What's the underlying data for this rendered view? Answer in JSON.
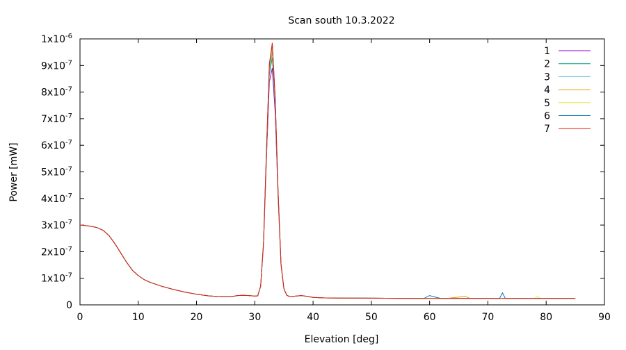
{
  "chart_data": {
    "type": "line",
    "title": "Scan south 10.3.2022",
    "xlabel": "Elevation [deg]",
    "ylabel": "Power [mW]",
    "xlim": [
      0,
      90
    ],
    "ylim": [
      0,
      1e-06
    ],
    "x_ticks": [
      {
        "value": 0,
        "label": "0"
      },
      {
        "value": 10,
        "label": "10"
      },
      {
        "value": 20,
        "label": "20"
      },
      {
        "value": 30,
        "label": "30"
      },
      {
        "value": 40,
        "label": "40"
      },
      {
        "value": 50,
        "label": "50"
      },
      {
        "value": 60,
        "label": "60"
      },
      {
        "value": 70,
        "label": "70"
      },
      {
        "value": 80,
        "label": "80"
      },
      {
        "value": 90,
        "label": "90"
      }
    ],
    "y_ticks": [
      {
        "value": 0,
        "label": "0",
        "mantissa": "0",
        "exp": ""
      },
      {
        "value": 1e-07,
        "label": "1x10-7",
        "mantissa": "1x10",
        "exp": "-7"
      },
      {
        "value": 2e-07,
        "label": "2x10-7",
        "mantissa": "2x10",
        "exp": "-7"
      },
      {
        "value": 3e-07,
        "label": "3x10-7",
        "mantissa": "3x10",
        "exp": "-7"
      },
      {
        "value": 4e-07,
        "label": "4x10-7",
        "mantissa": "4x10",
        "exp": "-7"
      },
      {
        "value": 5e-07,
        "label": "5x10-7",
        "mantissa": "5x10",
        "exp": "-7"
      },
      {
        "value": 6e-07,
        "label": "6x10-7",
        "mantissa": "6x10",
        "exp": "-7"
      },
      {
        "value": 7e-07,
        "label": "7x10-7",
        "mantissa": "7x10",
        "exp": "-7"
      },
      {
        "value": 8e-07,
        "label": "8x10-7",
        "mantissa": "8x10",
        "exp": "-7"
      },
      {
        "value": 9e-07,
        "label": "9x10-7",
        "mantissa": "9x10",
        "exp": "-7"
      },
      {
        "value": 1e-06,
        "label": "1x10-6",
        "mantissa": "1x10",
        "exp": "-6"
      }
    ],
    "grid": false,
    "legend_position": "top-right",
    "x": [
      0,
      1,
      2,
      3,
      4,
      5,
      6,
      7,
      8,
      9,
      10,
      11,
      12,
      14,
      16,
      18,
      20,
      22,
      24,
      26,
      27,
      28,
      29,
      30,
      30.5,
      31,
      31.5,
      32,
      32.5,
      33,
      33.5,
      34,
      34.5,
      35,
      35.5,
      36,
      37,
      38,
      39,
      40,
      42,
      45,
      50,
      55,
      59,
      60,
      61,
      62,
      63,
      64,
      65,
      66,
      67,
      68,
      70,
      72,
      72.5,
      73,
      75,
      77,
      78,
      78.5,
      79,
      80,
      82,
      85
    ],
    "base": [
      3e-07,
      2.98e-07,
      2.95e-07,
      2.9e-07,
      2.8e-07,
      2.6e-07,
      2.3e-07,
      1.95e-07,
      1.6e-07,
      1.3e-07,
      1.1e-07,
      9.5e-08,
      8.5e-08,
      7e-08,
      5.8e-08,
      4.8e-08,
      4e-08,
      3.4e-08,
      3.1e-08,
      3.1e-08,
      3.5e-08,
      3.6e-08,
      3.5e-08,
      3.3e-08,
      3.4e-08,
      7e-08,
      2.3e-07,
      5.6e-07,
      8.6e-07,
      9.2e-07,
      7.4e-07,
      4.1e-07,
      1.5e-07,
      6e-08,
      3.6e-08,
      3.1e-08,
      3.3e-08,
      3.5e-08,
      3.2e-08,
      2.8e-08,
      2.6e-08,
      2.55e-08,
      2.5e-08,
      2.45e-08,
      2.4e-08,
      2.4e-08,
      2.4e-08,
      2.4e-08,
      2.4e-08,
      2.4e-08,
      2.4e-08,
      2.4e-08,
      2.4e-08,
      2.4e-08,
      2.4e-08,
      2.4e-08,
      2.4e-08,
      2.4e-08,
      2.4e-08,
      2.4e-08,
      2.4e-08,
      2.4e-08,
      2.4e-08,
      2.4e-08,
      2.4e-08,
      2.4e-08
    ],
    "series": [
      {
        "name": "1",
        "color": "#9400d3",
        "peak": 8.9e-07,
        "bumps": []
      },
      {
        "name": "2",
        "color": "#009e73",
        "peak": 9.3e-07,
        "bumps": []
      },
      {
        "name": "3",
        "color": "#56b4e9",
        "peak": 9.5e-07,
        "bumps": []
      },
      {
        "name": "4",
        "color": "#e69f00",
        "peak": 9.6e-07,
        "bumps": [
          {
            "x": 66,
            "y": 3.3e-08
          },
          {
            "x": 65,
            "y": 2.9e-08
          },
          {
            "x": 64,
            "y": 2.7e-08
          }
        ]
      },
      {
        "name": "5",
        "color": "#f0e442",
        "peak": 9.7e-07,
        "bumps": [
          {
            "x": 78.5,
            "y": 3.2e-08
          }
        ]
      },
      {
        "name": "6",
        "color": "#0072b2",
        "peak": 9.8e-07,
        "bumps": [
          {
            "x": 60,
            "y": 3.5e-08
          },
          {
            "x": 61,
            "y": 2.9e-08
          },
          {
            "x": 72.5,
            "y": 4.5e-08
          }
        ]
      },
      {
        "name": "7",
        "color": "#e51e10",
        "peak": 9.85e-07,
        "bumps": []
      }
    ]
  }
}
